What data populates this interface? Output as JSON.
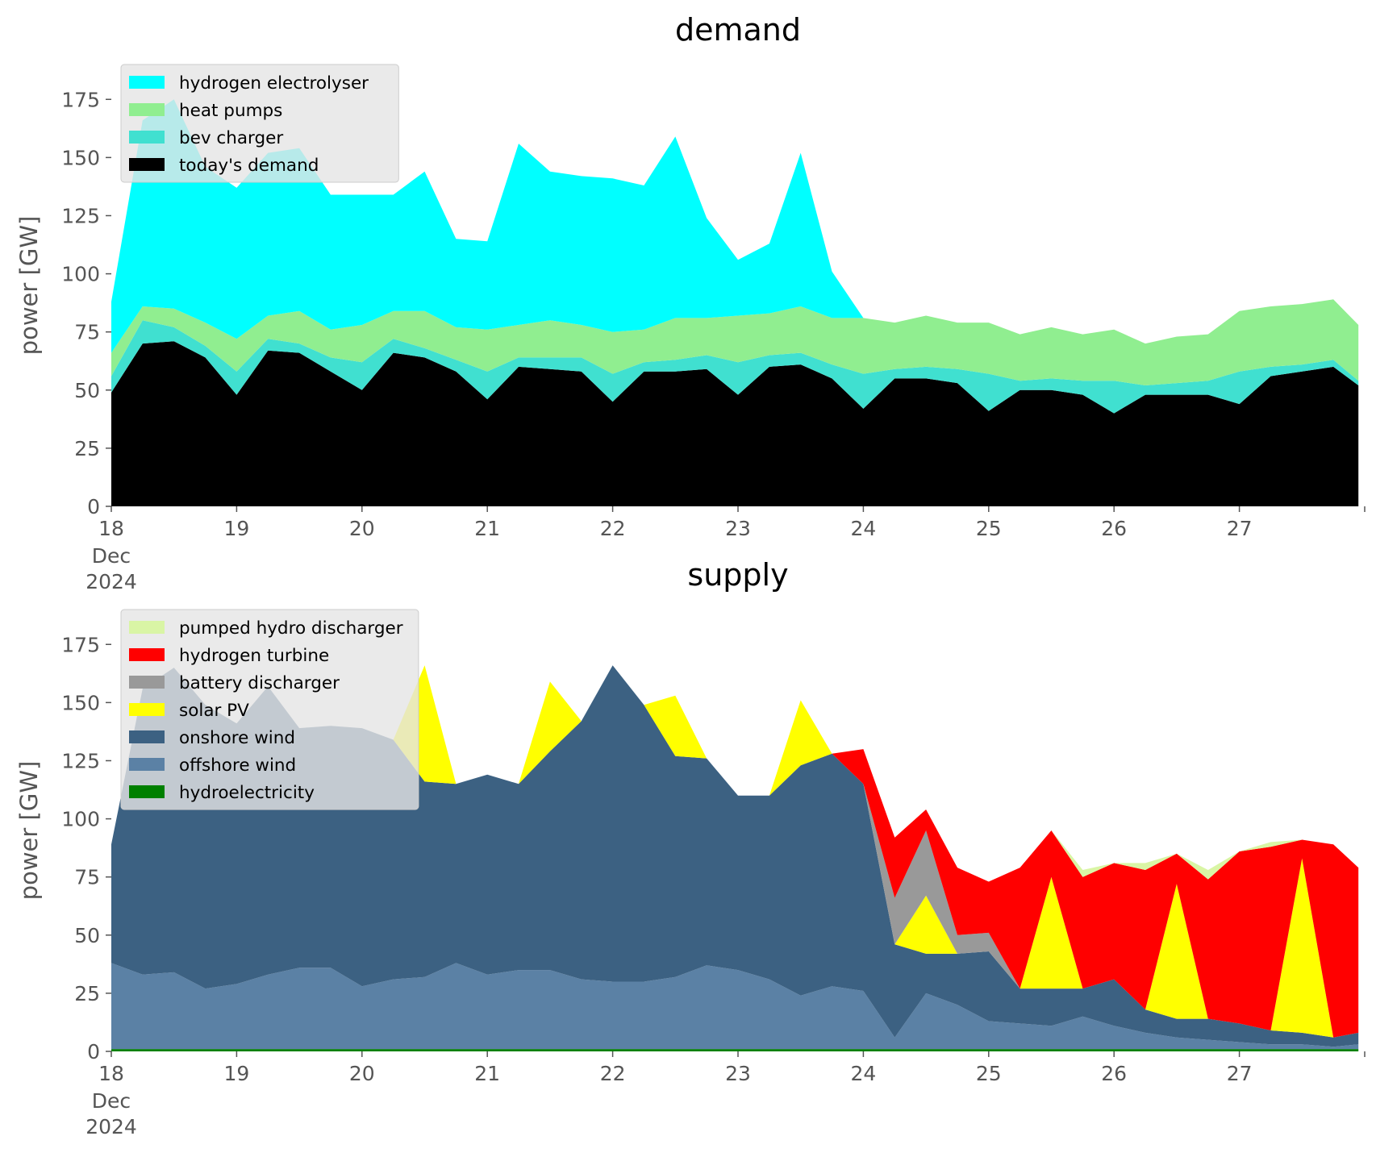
{
  "chart_data": [
    {
      "type": "area",
      "stacked": true,
      "title": "demand",
      "ylabel": "power [GW]",
      "ylim": [
        0,
        190
      ],
      "xlim": [
        "2024-12-18 00:00",
        "2024-12-28 00:00"
      ],
      "yticks": [
        0,
        25,
        50,
        75,
        100,
        125,
        150,
        175
      ],
      "xticks": [
        "18",
        "19",
        "20",
        "21",
        "22",
        "23",
        "24",
        "25",
        "26",
        "27"
      ],
      "xtick_first_extra": [
        "Dec",
        "2024"
      ],
      "legend_position": "upper-left",
      "grid": false,
      "x_days": [
        0,
        0.25,
        0.5,
        0.75,
        1,
        1.25,
        1.5,
        1.75,
        2,
        2.25,
        2.5,
        2.75,
        3,
        3.25,
        3.5,
        3.75,
        4,
        4.25,
        4.5,
        4.75,
        5,
        5.25,
        5.5,
        5.75,
        6,
        6.25,
        6.5,
        6.75,
        7,
        7.25,
        7.5,
        7.75,
        8,
        8.25,
        8.5,
        8.75,
        9,
        9.25,
        9.5,
        9.75,
        9.95
      ],
      "series": [
        {
          "name": "today's demand",
          "color": "#000000",
          "values": [
            49,
            70,
            71,
            64,
            48,
            67,
            66,
            58,
            50,
            66,
            64,
            58,
            46,
            60,
            59,
            58,
            45,
            58,
            58,
            59,
            48,
            60,
            61,
            55,
            42,
            55,
            55,
            53,
            41,
            50,
            50,
            48,
            40,
            48,
            48,
            48,
            44,
            56,
            58,
            60,
            52
          ]
        },
        {
          "name": "bev charger",
          "color": "#40e0d0",
          "values": [
            7,
            10,
            6,
            5,
            10,
            5,
            4,
            6,
            12,
            6,
            4,
            5,
            12,
            4,
            5,
            6,
            12,
            4,
            5,
            6,
            14,
            5,
            5,
            6,
            15,
            4,
            5,
            6,
            16,
            4,
            5,
            6,
            14,
            4,
            5,
            6,
            14,
            4,
            3,
            3,
            2
          ]
        },
        {
          "name": "heat pumps",
          "color": "#90ee90",
          "values": [
            10,
            6,
            8,
            10,
            14,
            10,
            14,
            12,
            16,
            12,
            16,
            14,
            18,
            14,
            16,
            14,
            18,
            14,
            18,
            16,
            20,
            18,
            20,
            20,
            24,
            20,
            22,
            20,
            22,
            20,
            22,
            20,
            22,
            18,
            20,
            20,
            26,
            26,
            26,
            26,
            24
          ]
        },
        {
          "name": "hydrogen electrolyser",
          "color": "#00ffff",
          "values": [
            22,
            80,
            90,
            67,
            65,
            70,
            70,
            58,
            56,
            50,
            60,
            38,
            38,
            78,
            64,
            64,
            66,
            62,
            78,
            43,
            24,
            30,
            66,
            20,
            0,
            0,
            0,
            0,
            0,
            0,
            0,
            0,
            0,
            0,
            0,
            0,
            0,
            0,
            0,
            0,
            0
          ]
        }
      ]
    },
    {
      "type": "area",
      "stacked": true,
      "title": "supply",
      "ylabel": "power [GW]",
      "ylim": [
        0,
        190
      ],
      "xlim": [
        "2024-12-18 00:00",
        "2024-12-28 00:00"
      ],
      "yticks": [
        0,
        25,
        50,
        75,
        100,
        125,
        150,
        175
      ],
      "xticks": [
        "18",
        "19",
        "20",
        "21",
        "22",
        "23",
        "24",
        "25",
        "26",
        "27"
      ],
      "xtick_first_extra": [
        "Dec",
        "2024"
      ],
      "legend_position": "upper-left",
      "grid": false,
      "x_days": [
        0,
        0.25,
        0.5,
        0.75,
        1,
        1.25,
        1.5,
        1.75,
        2,
        2.25,
        2.5,
        2.75,
        3,
        3.25,
        3.5,
        3.75,
        4,
        4.25,
        4.5,
        4.75,
        5,
        5.25,
        5.5,
        5.75,
        6,
        6.25,
        6.5,
        6.75,
        7,
        7.25,
        7.5,
        7.75,
        8,
        8.25,
        8.5,
        8.75,
        9,
        9.25,
        9.5,
        9.75,
        9.95
      ],
      "series": [
        {
          "name": "hydroelectricity",
          "color": "#008000",
          "values": [
            1,
            1,
            1,
            1,
            1,
            1,
            1,
            1,
            1,
            1,
            1,
            1,
            1,
            1,
            1,
            1,
            1,
            1,
            1,
            1,
            1,
            1,
            1,
            1,
            1,
            1,
            1,
            1,
            1,
            1,
            1,
            1,
            1,
            1,
            1,
            1,
            1,
            1,
            1,
            1,
            1
          ]
        },
        {
          "name": "offshore wind",
          "color": "#5b81a5",
          "values": [
            37,
            32,
            33,
            26,
            28,
            32,
            35,
            35,
            27,
            30,
            31,
            37,
            32,
            34,
            34,
            30,
            29,
            29,
            31,
            36,
            34,
            30,
            23,
            27,
            25,
            5,
            24,
            19,
            12,
            11,
            10,
            14,
            10,
            7,
            5,
            4,
            3,
            2,
            2,
            1,
            2
          ]
        },
        {
          "name": "onshore wind",
          "color": "#3c6182",
          "values": [
            51,
            123,
            131,
            122,
            112,
            124,
            103,
            104,
            111,
            103,
            84,
            77,
            86,
            80,
            94,
            111,
            136,
            119,
            95,
            89,
            75,
            79,
            99,
            100,
            89,
            40,
            17,
            22,
            30,
            15,
            16,
            12,
            20,
            10,
            8,
            9,
            8,
            6,
            5,
            4,
            5
          ]
        },
        {
          "name": "solar PV",
          "color": "#ffff00",
          "values": [
            0,
            0,
            0,
            0,
            0,
            0,
            0,
            0,
            0,
            0,
            50,
            0,
            0,
            0,
            30,
            0,
            0,
            0,
            26,
            0,
            0,
            0,
            28,
            0,
            0,
            0,
            25,
            0,
            0,
            0,
            48,
            0,
            0,
            0,
            58,
            0,
            0,
            0,
            75,
            0,
            0
          ]
        },
        {
          "name": "battery discharger",
          "color": "#999999",
          "values": [
            0,
            0,
            0,
            0,
            0,
            0,
            0,
            0,
            0,
            0,
            0,
            0,
            0,
            0,
            0,
            0,
            0,
            0,
            0,
            0,
            0,
            0,
            0,
            0,
            0,
            20,
            28,
            8,
            8,
            0,
            0,
            0,
            0,
            0,
            0,
            0,
            0,
            0,
            0,
            0,
            0
          ]
        },
        {
          "name": "hydrogen turbine",
          "color": "#ff0000",
          "values": [
            0,
            0,
            0,
            0,
            0,
            0,
            0,
            0,
            0,
            0,
            0,
            0,
            0,
            0,
            0,
            0,
            0,
            0,
            0,
            0,
            0,
            0,
            0,
            0,
            15,
            26,
            9,
            29,
            22,
            52,
            20,
            48,
            50,
            60,
            13,
            60,
            74,
            79,
            8,
            83,
            71
          ]
        },
        {
          "name": "pumped hydro discharger",
          "color": "#d9f5a5",
          "values": [
            0,
            0,
            0,
            0,
            0,
            0,
            0,
            0,
            0,
            0,
            0,
            0,
            0,
            0,
            0,
            0,
            0,
            0,
            0,
            0,
            0,
            0,
            0,
            0,
            0,
            0,
            0,
            0,
            0,
            0,
            0,
            3,
            0,
            3,
            0,
            4,
            0,
            2,
            0,
            0,
            0
          ]
        }
      ]
    }
  ]
}
